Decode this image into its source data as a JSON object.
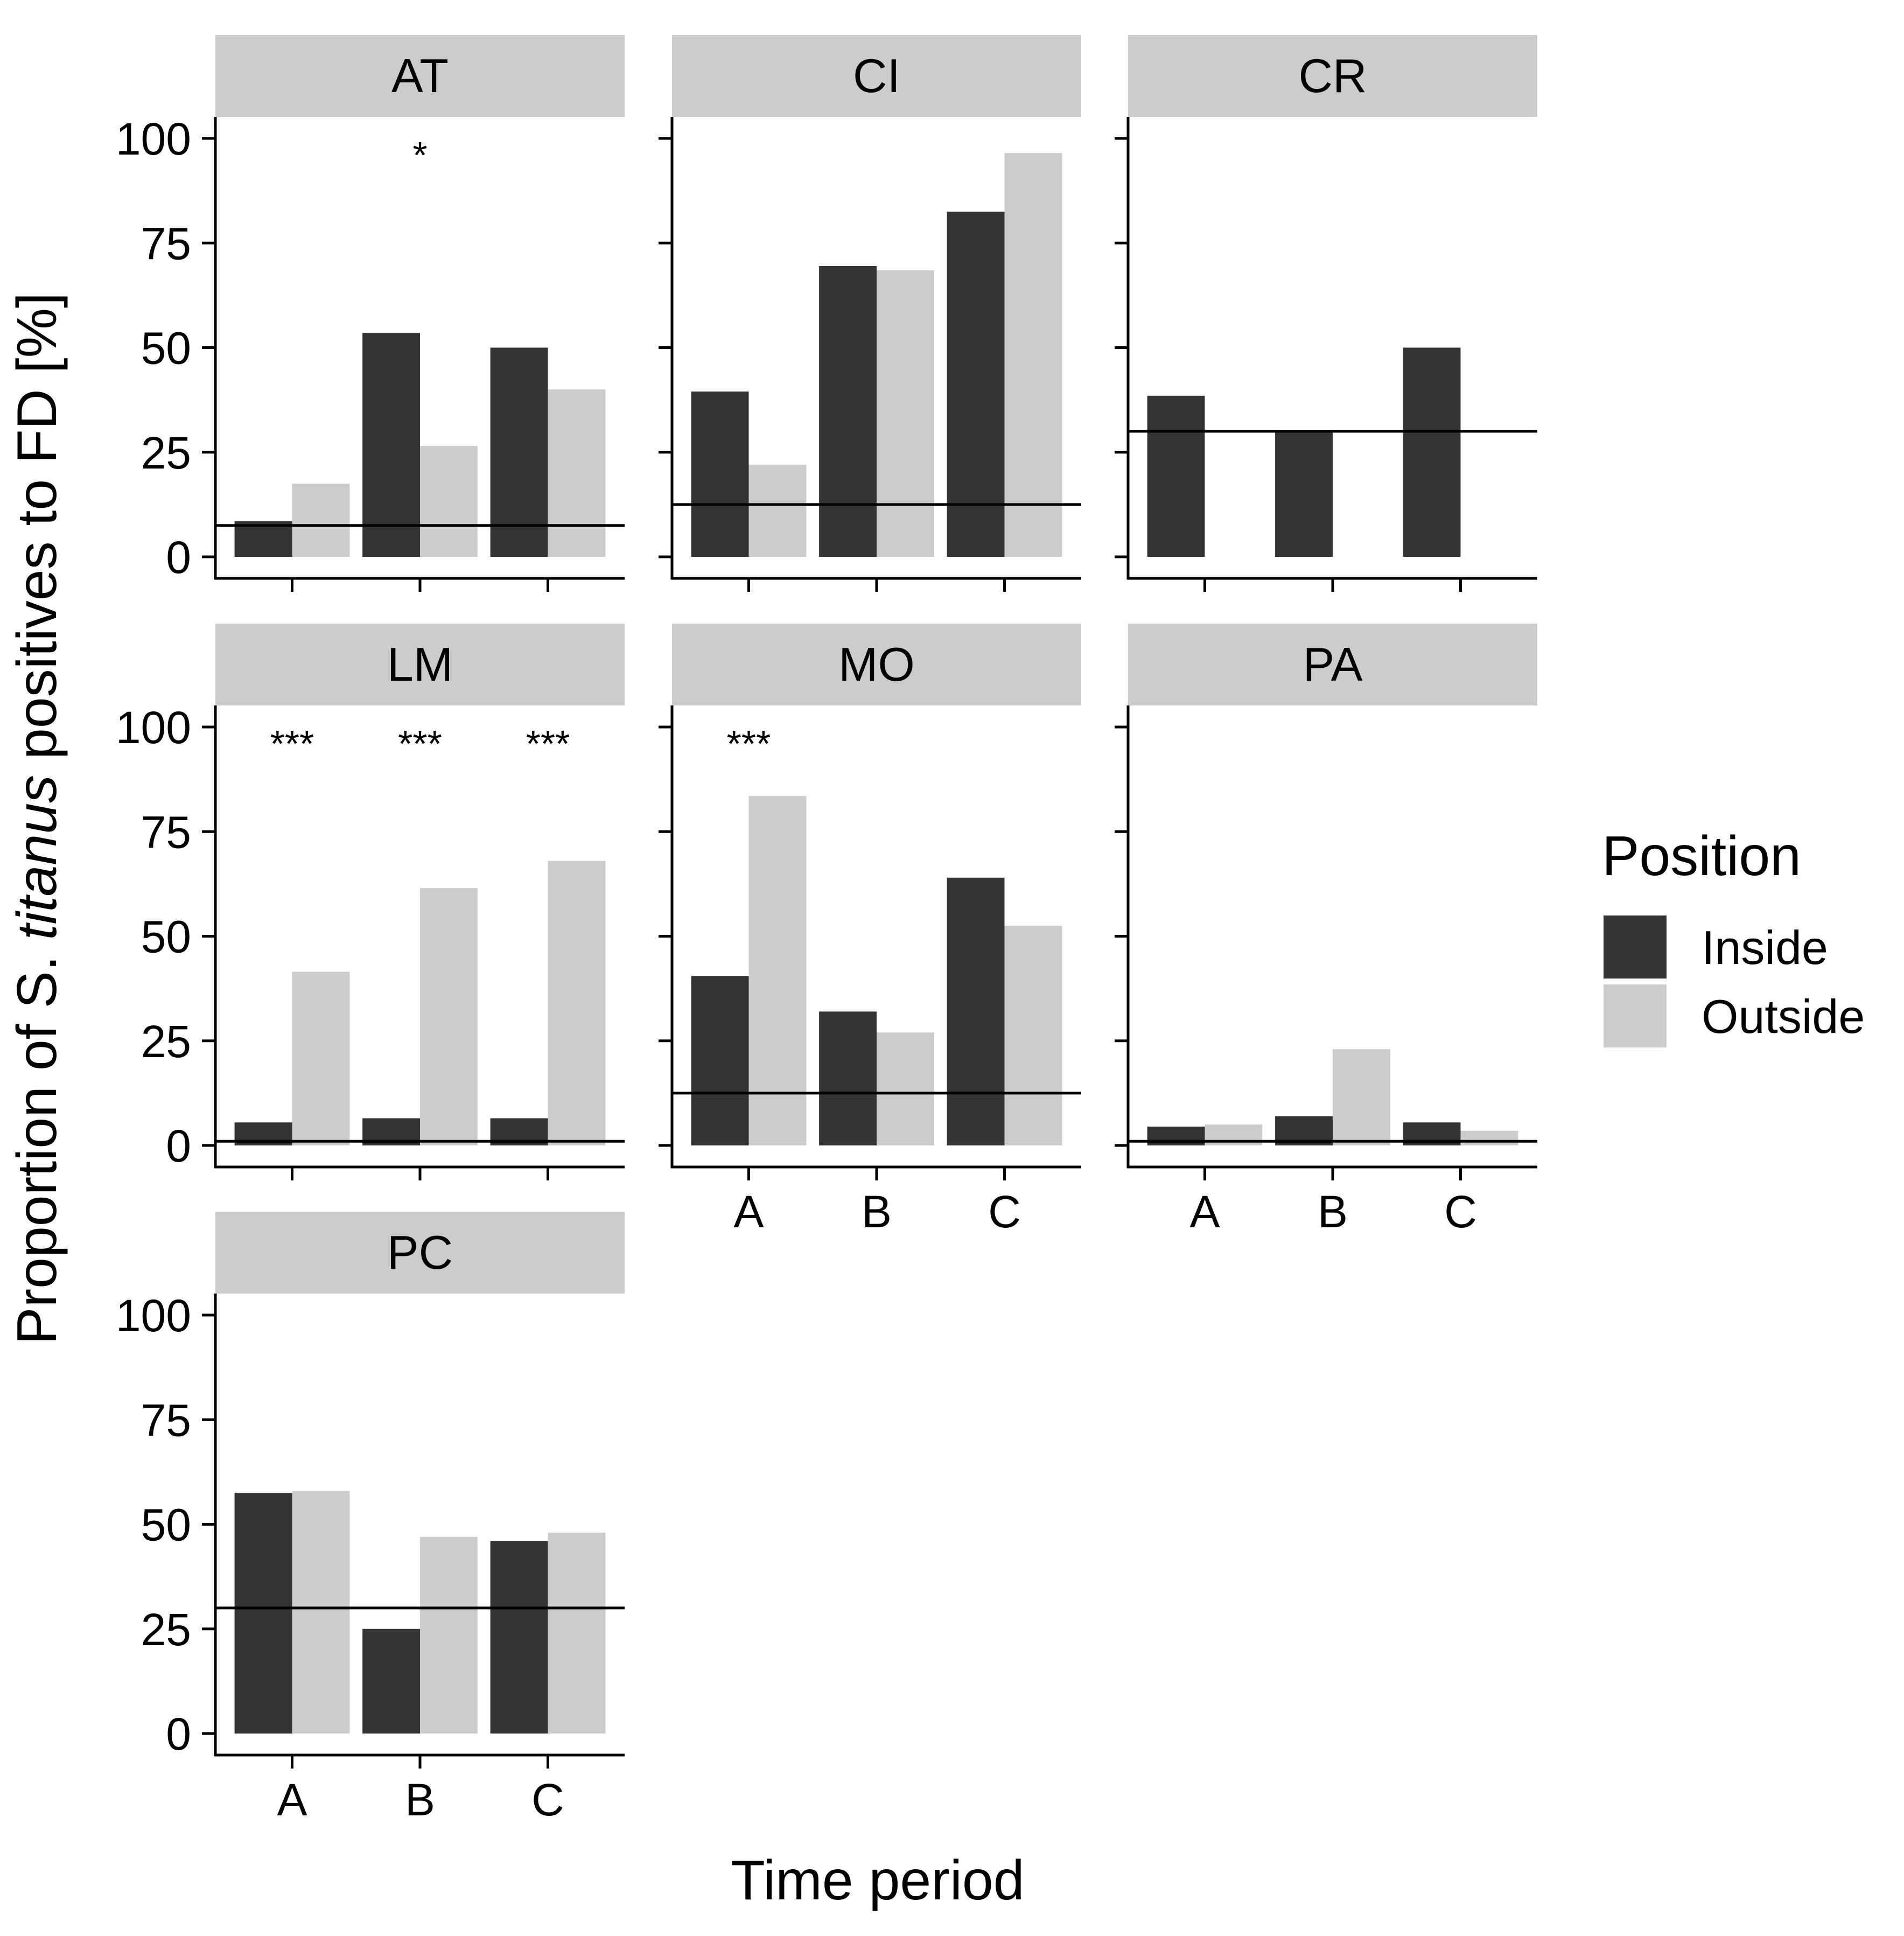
{
  "chart_data": {
    "type": "bar",
    "layout": "faceted",
    "categories": [
      "A",
      "B",
      "C"
    ],
    "xlabel": "Time period",
    "ylabel": {
      "prefix": "Proportion of S. ",
      "italic": "titanus",
      "suffix": " positives to FD [%]"
    },
    "ylim": [
      0,
      100
    ],
    "yticks": [
      0,
      25,
      50,
      75,
      100
    ],
    "legend": {
      "title": "Position",
      "position": "right",
      "entries": [
        {
          "name": "Inside",
          "color": "#333333"
        },
        {
          "name": "Outside",
          "color": "#cccccc"
        }
      ]
    },
    "reference_line": "horizontal line per panel",
    "facets": [
      {
        "label": "AT",
        "reference": 7.5,
        "series": [
          {
            "name": "Inside",
            "values": [
              8.5,
              53.5,
              50
            ]
          },
          {
            "name": "Outside",
            "values": [
              17.5,
              26.5,
              40
            ]
          }
        ],
        "significance": [
          "",
          "*",
          ""
        ]
      },
      {
        "label": "CI",
        "reference": 12.5,
        "series": [
          {
            "name": "Inside",
            "values": [
              39.5,
              69.5,
              82.5
            ]
          },
          {
            "name": "Outside",
            "values": [
              22,
              68.5,
              96.5
            ]
          }
        ],
        "significance": [
          "",
          "",
          ""
        ]
      },
      {
        "label": "CR",
        "reference": 30,
        "series": [
          {
            "name": "Inside",
            "values": [
              38.5,
              30,
              50
            ]
          },
          {
            "name": "Outside",
            "values": [
              0,
              0,
              0
            ]
          }
        ],
        "significance": [
          "",
          "",
          ""
        ]
      },
      {
        "label": "LM",
        "reference": 1,
        "series": [
          {
            "name": "Inside",
            "values": [
              5.5,
              6.5,
              6.5
            ]
          },
          {
            "name": "Outside",
            "values": [
              41.5,
              61.5,
              68
            ]
          }
        ],
        "significance": [
          "***",
          "***",
          "***"
        ]
      },
      {
        "label": "MO",
        "reference": 12.5,
        "series": [
          {
            "name": "Inside",
            "values": [
              40.5,
              32,
              64
            ]
          },
          {
            "name": "Outside",
            "values": [
              83.5,
              27,
              52.5
            ]
          }
        ],
        "significance": [
          "***",
          "",
          ""
        ]
      },
      {
        "label": "PA",
        "reference": 1,
        "series": [
          {
            "name": "Inside",
            "values": [
              4.5,
              7,
              5.5
            ]
          },
          {
            "name": "Outside",
            "values": [
              5,
              23,
              3.5
            ]
          }
        ],
        "significance": [
          "",
          "",
          ""
        ]
      },
      {
        "label": "PC",
        "reference": 30,
        "series": [
          {
            "name": "Inside",
            "values": [
              57.5,
              25,
              46
            ]
          },
          {
            "name": "Outside",
            "values": [
              58,
              47,
              48
            ]
          }
        ],
        "significance": [
          "",
          "",
          ""
        ]
      }
    ]
  }
}
